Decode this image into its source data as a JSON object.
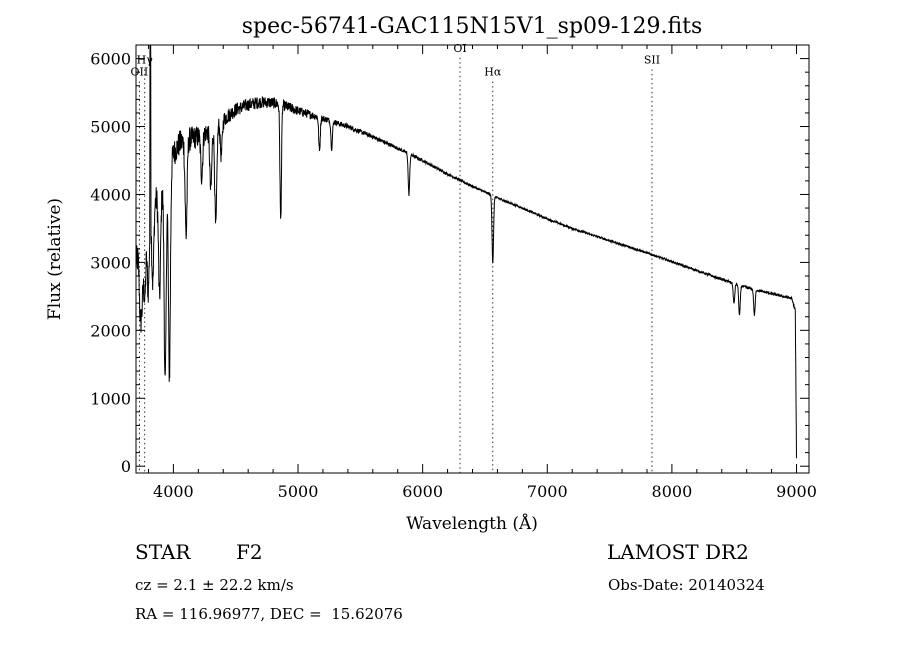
{
  "chart_data": {
    "type": "line",
    "title": "spec-56741-GAC115N15V1_sp09-129.fits",
    "xlabel": "Wavelength (Å)",
    "ylabel": "Flux (relative)",
    "xlim": [
      3700,
      9100
    ],
    "ylim": [
      -100,
      6200
    ],
    "x_ticks": [
      "4000",
      "5000",
      "6000",
      "7000",
      "8000",
      "9000"
    ],
    "y_ticks": [
      "0",
      "1000",
      "2000",
      "3000",
      "4000",
      "5000",
      "6000"
    ],
    "grid": false,
    "line_markers": [
      {
        "label": "OII",
        "x": 3727,
        "label_y": 5750
      },
      {
        "label": "Hγ",
        "x": 3770,
        "label_y": 5930
      },
      {
        "label": "OI",
        "x": 6300,
        "label_y": 6100
      },
      {
        "label": "Hα",
        "x": 6563,
        "label_y": 5750
      },
      {
        "label": "SII",
        "x": 7840,
        "label_y": 5930
      }
    ],
    "spectrum": {
      "continuum": [
        [
          3700,
          3000
        ],
        [
          3760,
          3300
        ],
        [
          3800,
          3600
        ],
        [
          3850,
          3900
        ],
        [
          3900,
          4000
        ],
        [
          3950,
          4300
        ],
        [
          4000,
          4600
        ],
        [
          4050,
          4750
        ],
        [
          4100,
          4800
        ],
        [
          4200,
          4850
        ],
        [
          4300,
          4950
        ],
        [
          4400,
          5100
        ],
        [
          4500,
          5250
        ],
        [
          4600,
          5320
        ],
        [
          4700,
          5360
        ],
        [
          4800,
          5350
        ],
        [
          4900,
          5300
        ],
        [
          5000,
          5230
        ],
        [
          5200,
          5120
        ],
        [
          5400,
          5000
        ],
        [
          5600,
          4850
        ],
        [
          5800,
          4680
        ],
        [
          6000,
          4500
        ],
        [
          6200,
          4300
        ],
        [
          6400,
          4120
        ],
        [
          6600,
          3950
        ],
        [
          6800,
          3800
        ],
        [
          7000,
          3640
        ],
        [
          7200,
          3500
        ],
        [
          7400,
          3380
        ],
        [
          7600,
          3260
        ],
        [
          7800,
          3140
        ],
        [
          8000,
          3010
        ],
        [
          8200,
          2880
        ],
        [
          8400,
          2750
        ],
        [
          8600,
          2630
        ],
        [
          8800,
          2540
        ],
        [
          8960,
          2470
        ],
        [
          8990,
          2300
        ],
        [
          9000,
          100
        ]
      ],
      "absorption_lines": [
        [
          3735,
          900
        ],
        [
          3750,
          700
        ],
        [
          3771,
          900
        ],
        [
          3798,
          1000
        ],
        [
          3835,
          1100
        ],
        [
          3889,
          1500
        ],
        [
          3934,
          3000
        ],
        [
          3968,
          3100
        ],
        [
          4102,
          1400
        ],
        [
          4227,
          600
        ],
        [
          4300,
          900
        ],
        [
          4340,
          1500
        ],
        [
          4384,
          500
        ],
        [
          4861,
          1700
        ],
        [
          5172,
          500
        ],
        [
          5270,
          400
        ],
        [
          5890,
          600
        ],
        [
          6563,
          1000
        ],
        [
          8498,
          300
        ],
        [
          8542,
          450
        ],
        [
          8662,
          380
        ]
      ],
      "noise_amplitude": [
        [
          3700,
          450
        ],
        [
          4100,
          380
        ],
        [
          4500,
          200
        ],
        [
          4900,
          160
        ],
        [
          5300,
          80
        ],
        [
          5800,
          50
        ],
        [
          6400,
          35
        ],
        [
          7000,
          30
        ],
        [
          8000,
          30
        ],
        [
          9000,
          40
        ]
      ]
    }
  },
  "footer": {
    "object_label": "STAR",
    "subclass": "F2",
    "survey": "LAMOST DR2",
    "redshift": "cz = 2.1 ± 22.2 km/s",
    "obs_date": "Obs-Date: 20140324",
    "coords": "RA = 116.96977, DEC =  15.62076"
  }
}
